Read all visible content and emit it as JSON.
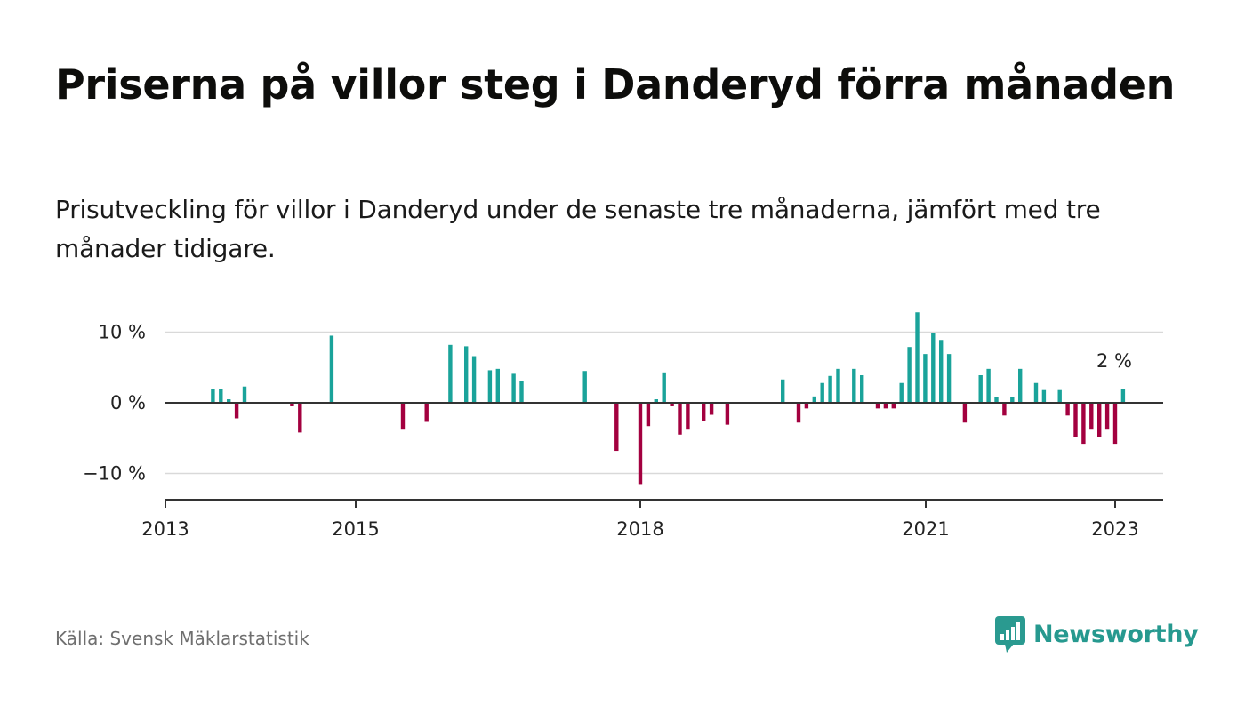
{
  "title": "Priserna på villor steg i Danderyd förra månaden",
  "subtitle": "Prisutveckling för villor i Danderyd under de senaste tre månaderna, jämfört med tre månader tidigare.",
  "source": "Källa: Svensk Mäklarstatistik",
  "brand": {
    "name": "Newsworthy",
    "icon": "newsworthy-logo-icon",
    "color": "#26998f"
  },
  "colors": {
    "positive": "#1aa39a",
    "negative": "#a3003f",
    "zero_line": "#333333",
    "grid": "#d9d9d9"
  },
  "chart_data": {
    "type": "bar",
    "x_label_ticks": [
      "2013",
      "2015",
      "2018",
      "2021",
      "2023"
    ],
    "y_label_ticks": [
      "10 %",
      "0 %",
      "−10 %"
    ],
    "y_ticks": [
      10,
      0,
      -10
    ],
    "ylim": [
      -13.5,
      13
    ],
    "xlim": [
      "2013-01",
      "2023-06"
    ],
    "grid": true,
    "annotation": {
      "text": "2 %",
      "date": "2023-01",
      "value": 2
    },
    "series": [
      {
        "points": [
          {
            "date": "2013-07",
            "value": 2
          },
          {
            "date": "2013-08",
            "value": 2
          },
          {
            "date": "2013-09",
            "value": 0.5
          },
          {
            "date": "2013-10",
            "value": -2.2
          },
          {
            "date": "2013-11",
            "value": 2.3
          },
          {
            "date": "2014-05",
            "value": -0.5
          },
          {
            "date": "2014-06",
            "value": -4.2
          },
          {
            "date": "2014-10",
            "value": 9.5
          },
          {
            "date": "2015-07",
            "value": -3.8
          },
          {
            "date": "2015-10",
            "value": -2.7
          },
          {
            "date": "2016-01",
            "value": 8.2
          },
          {
            "date": "2016-03",
            "value": 8
          },
          {
            "date": "2016-04",
            "value": 6.6
          },
          {
            "date": "2016-06",
            "value": 4.6
          },
          {
            "date": "2016-07",
            "value": 4.8
          },
          {
            "date": "2016-09",
            "value": 4.1
          },
          {
            "date": "2016-10",
            "value": 3.1
          },
          {
            "date": "2017-06",
            "value": 4.5
          },
          {
            "date": "2017-10",
            "value": -6.8
          },
          {
            "date": "2018-01",
            "value": -11.5
          },
          {
            "date": "2018-02",
            "value": -3.3
          },
          {
            "date": "2018-03",
            "value": 0.5
          },
          {
            "date": "2018-04",
            "value": 4.3
          },
          {
            "date": "2018-05",
            "value": -0.5
          },
          {
            "date": "2018-06",
            "value": -4.5
          },
          {
            "date": "2018-07",
            "value": -3.8
          },
          {
            "date": "2018-09",
            "value": -2.6
          },
          {
            "date": "2018-10",
            "value": -1.7
          },
          {
            "date": "2018-12",
            "value": -3.1
          },
          {
            "date": "2019-07",
            "value": 3.3
          },
          {
            "date": "2019-09",
            "value": -2.8
          },
          {
            "date": "2019-10",
            "value": -0.8
          },
          {
            "date": "2019-11",
            "value": 0.9
          },
          {
            "date": "2019-12",
            "value": 2.8
          },
          {
            "date": "2020-01",
            "value": 3.8
          },
          {
            "date": "2020-02",
            "value": 4.8
          },
          {
            "date": "2020-04",
            "value": 4.8
          },
          {
            "date": "2020-05",
            "value": 3.9
          },
          {
            "date": "2020-07",
            "value": -0.8
          },
          {
            "date": "2020-08",
            "value": -0.8
          },
          {
            "date": "2020-09",
            "value": -0.8
          },
          {
            "date": "2020-10",
            "value": 2.8
          },
          {
            "date": "2020-11",
            "value": 7.9
          },
          {
            "date": "2020-12",
            "value": 12.8
          },
          {
            "date": "2021-01",
            "value": 6.9
          },
          {
            "date": "2021-02",
            "value": 9.9
          },
          {
            "date": "2021-03",
            "value": 8.9
          },
          {
            "date": "2021-04",
            "value": 6.9
          },
          {
            "date": "2021-06",
            "value": -2.8
          },
          {
            "date": "2021-08",
            "value": 3.9
          },
          {
            "date": "2021-09",
            "value": 4.8
          },
          {
            "date": "2021-10",
            "value": 0.8
          },
          {
            "date": "2021-11",
            "value": -1.8
          },
          {
            "date": "2021-12",
            "value": 0.8
          },
          {
            "date": "2022-01",
            "value": 4.8
          },
          {
            "date": "2022-03",
            "value": 2.8
          },
          {
            "date": "2022-04",
            "value": 1.8
          },
          {
            "date": "2022-06",
            "value": 1.8
          },
          {
            "date": "2022-07",
            "value": -1.8
          },
          {
            "date": "2022-08",
            "value": -4.8
          },
          {
            "date": "2022-09",
            "value": -5.8
          },
          {
            "date": "2022-10",
            "value": -3.8
          },
          {
            "date": "2022-11",
            "value": -4.8
          },
          {
            "date": "2022-12",
            "value": -3.8
          },
          {
            "date": "2023-01",
            "value": -5.8
          },
          {
            "date": "2023-02",
            "value": 1.9
          }
        ]
      }
    ]
  }
}
